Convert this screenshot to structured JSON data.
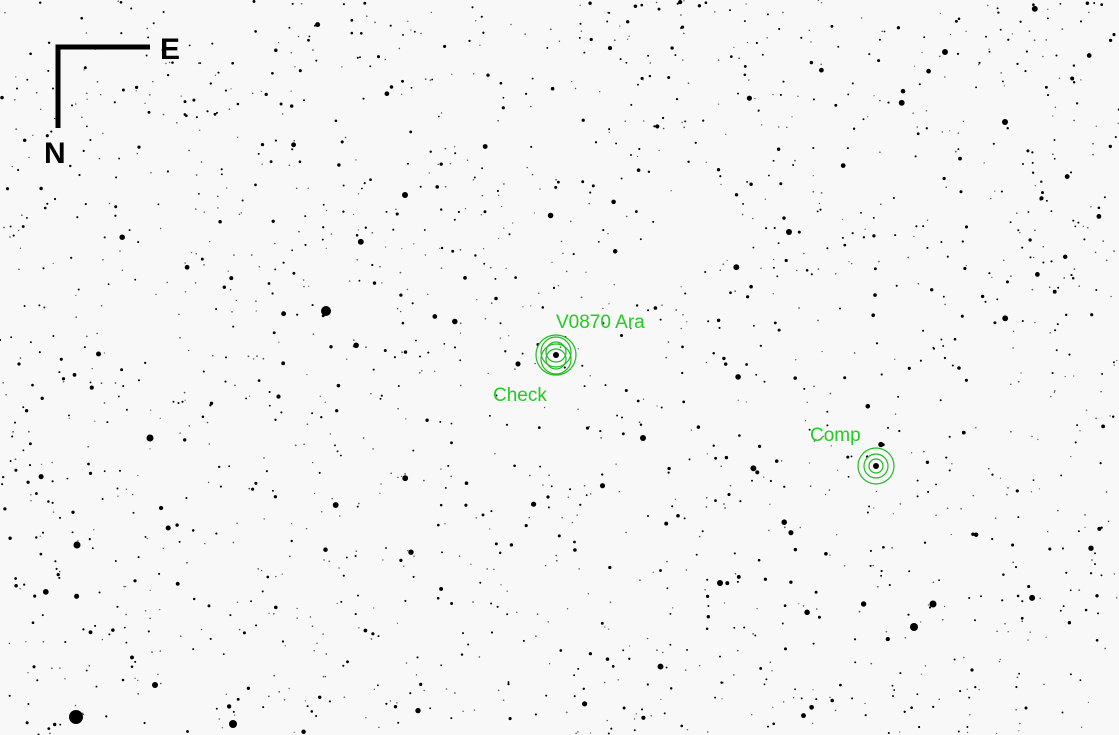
{
  "compass": {
    "east": "E",
    "north": "N"
  },
  "targets": [
    {
      "label": "V0870 Ara"
    },
    {
      "label": "Check"
    },
    {
      "label": "Comp"
    }
  ]
}
